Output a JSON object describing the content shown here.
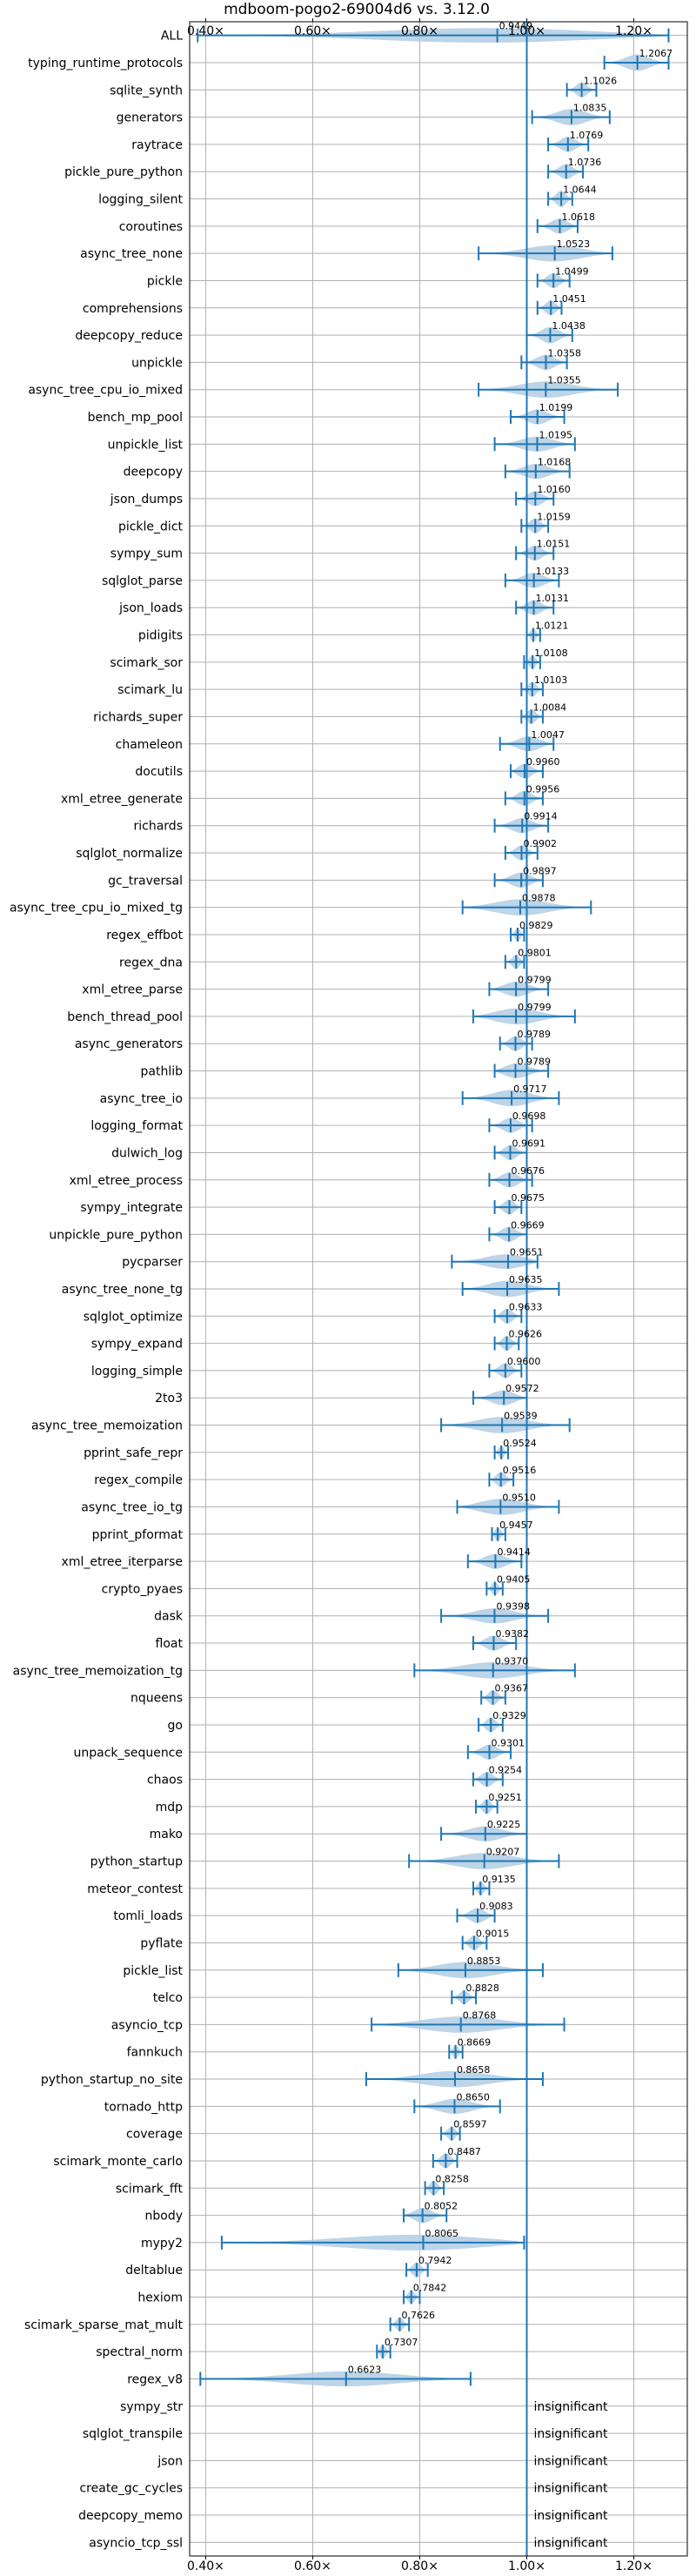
{
  "chart_data": {
    "type": "violin",
    "title": "mdboom-pogo2-69004d6 vs. 3.12.0",
    "x_ticks": [
      "0.40×",
      "0.60×",
      "0.80×",
      "1.00×",
      "1.20×"
    ],
    "x_tick_values": [
      0.4,
      0.6,
      0.8,
      1.0,
      1.2
    ],
    "xlim": [
      0.37,
      1.3
    ],
    "reference_line": 1.0,
    "grid": true,
    "colors": {
      "violin": "#b3cde3",
      "line": "#1f77b4",
      "grid": "#b0b0b0"
    },
    "insignificant_text": "insignificant",
    "benchmarks": [
      {
        "name": "ALL",
        "label": "0.9449",
        "value": 0.9449,
        "lo": 0.385,
        "hi": 1.265,
        "width": 0.55
      },
      {
        "name": "typing_runtime_protocols",
        "label": "1.2067",
        "value": 1.2067,
        "lo": 1.145,
        "hi": 1.265,
        "width": 0.6
      },
      {
        "name": "sqlite_synth",
        "label": "1.1026",
        "value": 1.1026,
        "lo": 1.075,
        "hi": 1.13,
        "width": 0.55
      },
      {
        "name": "generators",
        "label": "1.0835",
        "value": 1.0835,
        "lo": 1.01,
        "hi": 1.155,
        "width": 0.6
      },
      {
        "name": "raytrace",
        "label": "1.0769",
        "value": 1.0769,
        "lo": 1.04,
        "hi": 1.115,
        "width": 0.55
      },
      {
        "name": "pickle_pure_python",
        "label": "1.0736",
        "value": 1.0736,
        "lo": 1.04,
        "hi": 1.105,
        "width": 0.55
      },
      {
        "name": "logging_silent",
        "label": "1.0644",
        "value": 1.0644,
        "lo": 1.04,
        "hi": 1.085,
        "width": 0.6
      },
      {
        "name": "coroutines",
        "label": "1.0618",
        "value": 1.0618,
        "lo": 1.02,
        "hi": 1.095,
        "width": 0.55
      },
      {
        "name": "async_tree_none",
        "label": "1.0523",
        "value": 1.0523,
        "lo": 0.91,
        "hi": 1.16,
        "width": 0.6
      },
      {
        "name": "pickle",
        "label": "1.0499",
        "value": 1.0499,
        "lo": 1.02,
        "hi": 1.08,
        "width": 0.55
      },
      {
        "name": "comprehensions",
        "label": "1.0451",
        "value": 1.0451,
        "lo": 1.02,
        "hi": 1.065,
        "width": 0.55
      },
      {
        "name": "deepcopy_reduce",
        "label": "1.0438",
        "value": 1.0438,
        "lo": 1.0,
        "hi": 1.085,
        "width": 0.6
      },
      {
        "name": "unpickle",
        "label": "1.0358",
        "value": 1.0358,
        "lo": 0.99,
        "hi": 1.075,
        "width": 0.55
      },
      {
        "name": "async_tree_cpu_io_mixed",
        "label": "1.0355",
        "value": 1.0355,
        "lo": 0.91,
        "hi": 1.17,
        "width": 0.6
      },
      {
        "name": "bench_mp_pool",
        "label": "1.0199",
        "value": 1.0199,
        "lo": 0.97,
        "hi": 1.07,
        "width": 0.55
      },
      {
        "name": "unpickle_list",
        "label": "1.0195",
        "value": 1.0195,
        "lo": 0.94,
        "hi": 1.09,
        "width": 0.55
      },
      {
        "name": "deepcopy",
        "label": "1.0168",
        "value": 1.0168,
        "lo": 0.96,
        "hi": 1.08,
        "width": 0.55
      },
      {
        "name": "json_dumps",
        "label": "1.0160",
        "value": 1.016,
        "lo": 0.98,
        "hi": 1.05,
        "width": 0.55
      },
      {
        "name": "pickle_dict",
        "label": "1.0159",
        "value": 1.0159,
        "lo": 0.99,
        "hi": 1.04,
        "width": 0.55
      },
      {
        "name": "sympy_sum",
        "label": "1.0151",
        "value": 1.0151,
        "lo": 0.98,
        "hi": 1.05,
        "width": 0.55
      },
      {
        "name": "sqlglot_parse",
        "label": "1.0133",
        "value": 1.0133,
        "lo": 0.96,
        "hi": 1.06,
        "width": 0.55
      },
      {
        "name": "json_loads",
        "label": "1.0131",
        "value": 1.0131,
        "lo": 0.98,
        "hi": 1.05,
        "width": 0.55
      },
      {
        "name": "pidigits",
        "label": "1.0121",
        "value": 1.0121,
        "lo": 1.0,
        "hi": 1.025,
        "width": 0.5
      },
      {
        "name": "scimark_sor",
        "label": "1.0108",
        "value": 1.0108,
        "lo": 0.995,
        "hi": 1.025,
        "width": 0.5
      },
      {
        "name": "scimark_lu",
        "label": "1.0103",
        "value": 1.0103,
        "lo": 0.99,
        "hi": 1.03,
        "width": 0.55
      },
      {
        "name": "richards_super",
        "label": "1.0084",
        "value": 1.0084,
        "lo": 0.99,
        "hi": 1.03,
        "width": 0.55
      },
      {
        "name": "chameleon",
        "label": "1.0047",
        "value": 1.0047,
        "lo": 0.95,
        "hi": 1.05,
        "width": 0.55
      },
      {
        "name": "docutils",
        "label": "0.9960",
        "value": 0.996,
        "lo": 0.97,
        "hi": 1.03,
        "width": 0.55
      },
      {
        "name": "xml_etree_generate",
        "label": "0.9956",
        "value": 0.9956,
        "lo": 0.96,
        "hi": 1.03,
        "width": 0.55
      },
      {
        "name": "richards",
        "label": "0.9914",
        "value": 0.9914,
        "lo": 0.94,
        "hi": 1.04,
        "width": 0.55
      },
      {
        "name": "sqlglot_normalize",
        "label": "0.9902",
        "value": 0.9902,
        "lo": 0.96,
        "hi": 1.02,
        "width": 0.55
      },
      {
        "name": "gc_traversal",
        "label": "0.9897",
        "value": 0.9897,
        "lo": 0.94,
        "hi": 1.03,
        "width": 0.55
      },
      {
        "name": "async_tree_cpu_io_mixed_tg",
        "label": "0.9878",
        "value": 0.9878,
        "lo": 0.88,
        "hi": 1.12,
        "width": 0.6
      },
      {
        "name": "regex_effbot",
        "label": "0.9829",
        "value": 0.9829,
        "lo": 0.97,
        "hi": 0.995,
        "width": 0.5
      },
      {
        "name": "regex_dna",
        "label": "0.9801",
        "value": 0.9801,
        "lo": 0.96,
        "hi": 0.995,
        "width": 0.5
      },
      {
        "name": "xml_etree_parse",
        "label": "0.9799",
        "value": 0.9799,
        "lo": 0.93,
        "hi": 1.04,
        "width": 0.55
      },
      {
        "name": "bench_thread_pool",
        "label": "0.9799",
        "value": 0.9799,
        "lo": 0.9,
        "hi": 1.09,
        "width": 0.6
      },
      {
        "name": "async_generators",
        "label": "0.9789",
        "value": 0.9789,
        "lo": 0.95,
        "hi": 1.01,
        "width": 0.55
      },
      {
        "name": "pathlib",
        "label": "0.9789",
        "value": 0.9789,
        "lo": 0.94,
        "hi": 1.04,
        "width": 0.55
      },
      {
        "name": "async_tree_io",
        "label": "0.9717",
        "value": 0.9717,
        "lo": 0.88,
        "hi": 1.06,
        "width": 0.6
      },
      {
        "name": "logging_format",
        "label": "0.9698",
        "value": 0.9698,
        "lo": 0.93,
        "hi": 1.01,
        "width": 0.55
      },
      {
        "name": "dulwich_log",
        "label": "0.9691",
        "value": 0.9691,
        "lo": 0.94,
        "hi": 1.0,
        "width": 0.55
      },
      {
        "name": "xml_etree_process",
        "label": "0.9676",
        "value": 0.9676,
        "lo": 0.93,
        "hi": 1.01,
        "width": 0.55
      },
      {
        "name": "sympy_integrate",
        "label": "0.9675",
        "value": 0.9675,
        "lo": 0.94,
        "hi": 0.99,
        "width": 0.55
      },
      {
        "name": "unpickle_pure_python",
        "label": "0.9669",
        "value": 0.9669,
        "lo": 0.93,
        "hi": 1.0,
        "width": 0.55
      },
      {
        "name": "pycparser",
        "label": "0.9651",
        "value": 0.9651,
        "lo": 0.86,
        "hi": 1.02,
        "width": 0.55
      },
      {
        "name": "async_tree_none_tg",
        "label": "0.9635",
        "value": 0.9635,
        "lo": 0.88,
        "hi": 1.06,
        "width": 0.6
      },
      {
        "name": "sqlglot_optimize",
        "label": "0.9633",
        "value": 0.9633,
        "lo": 0.94,
        "hi": 0.99,
        "width": 0.55
      },
      {
        "name": "sympy_expand",
        "label": "0.9626",
        "value": 0.9626,
        "lo": 0.94,
        "hi": 0.985,
        "width": 0.55
      },
      {
        "name": "logging_simple",
        "label": "0.9600",
        "value": 0.96,
        "lo": 0.93,
        "hi": 0.99,
        "width": 0.55
      },
      {
        "name": "2to3",
        "label": "0.9572",
        "value": 0.9572,
        "lo": 0.9,
        "hi": 1.0,
        "width": 0.55
      },
      {
        "name": "async_tree_memoization",
        "label": "0.9539",
        "value": 0.9539,
        "lo": 0.84,
        "hi": 1.08,
        "width": 0.6
      },
      {
        "name": "pprint_safe_repr",
        "label": "0.9524",
        "value": 0.9524,
        "lo": 0.94,
        "hi": 0.965,
        "width": 0.5
      },
      {
        "name": "regex_compile",
        "label": "0.9516",
        "value": 0.9516,
        "lo": 0.93,
        "hi": 0.975,
        "width": 0.55
      },
      {
        "name": "async_tree_io_tg",
        "label": "0.9510",
        "value": 0.951,
        "lo": 0.87,
        "hi": 1.06,
        "width": 0.6
      },
      {
        "name": "pprint_pformat",
        "label": "0.9457",
        "value": 0.9457,
        "lo": 0.935,
        "hi": 0.96,
        "width": 0.5
      },
      {
        "name": "xml_etree_iterparse",
        "label": "0.9414",
        "value": 0.9414,
        "lo": 0.89,
        "hi": 0.99,
        "width": 0.55
      },
      {
        "name": "crypto_pyaes",
        "label": "0.9405",
        "value": 0.9405,
        "lo": 0.925,
        "hi": 0.955,
        "width": 0.5
      },
      {
        "name": "dask",
        "label": "0.9398",
        "value": 0.9398,
        "lo": 0.84,
        "hi": 1.04,
        "width": 0.55
      },
      {
        "name": "float",
        "label": "0.9382",
        "value": 0.9382,
        "lo": 0.9,
        "hi": 0.98,
        "width": 0.55
      },
      {
        "name": "async_tree_memoization_tg",
        "label": "0.9370",
        "value": 0.937,
        "lo": 0.79,
        "hi": 1.09,
        "width": 0.6
      },
      {
        "name": "nqueens",
        "label": "0.9367",
        "value": 0.9367,
        "lo": 0.915,
        "hi": 0.96,
        "width": 0.55
      },
      {
        "name": "go",
        "label": "0.9329",
        "value": 0.9329,
        "lo": 0.91,
        "hi": 0.955,
        "width": 0.55
      },
      {
        "name": "unpack_sequence",
        "label": "0.9301",
        "value": 0.9301,
        "lo": 0.89,
        "hi": 0.97,
        "width": 0.55
      },
      {
        "name": "chaos",
        "label": "0.9254",
        "value": 0.9254,
        "lo": 0.9,
        "hi": 0.955,
        "width": 0.55
      },
      {
        "name": "mdp",
        "label": "0.9251",
        "value": 0.9251,
        "lo": 0.905,
        "hi": 0.945,
        "width": 0.55
      },
      {
        "name": "mako",
        "label": "0.9225",
        "value": 0.9225,
        "lo": 0.84,
        "hi": 1.0,
        "width": 0.55
      },
      {
        "name": "python_startup",
        "label": "0.9207",
        "value": 0.9207,
        "lo": 0.78,
        "hi": 1.06,
        "width": 0.6
      },
      {
        "name": "meteor_contest",
        "label": "0.9135",
        "value": 0.9135,
        "lo": 0.9,
        "hi": 0.93,
        "width": 0.5
      },
      {
        "name": "tomli_loads",
        "label": "0.9083",
        "value": 0.9083,
        "lo": 0.87,
        "hi": 0.94,
        "width": 0.55
      },
      {
        "name": "pyflate",
        "label": "0.9015",
        "value": 0.9015,
        "lo": 0.88,
        "hi": 0.925,
        "width": 0.55
      },
      {
        "name": "pickle_list",
        "label": "0.8853",
        "value": 0.8853,
        "lo": 0.76,
        "hi": 1.03,
        "width": 0.6
      },
      {
        "name": "telco",
        "label": "0.8828",
        "value": 0.8828,
        "lo": 0.86,
        "hi": 0.905,
        "width": 0.5
      },
      {
        "name": "asyncio_tcp",
        "label": "0.8768",
        "value": 0.8768,
        "lo": 0.71,
        "hi": 1.07,
        "width": 0.6
      },
      {
        "name": "fannkuch",
        "label": "0.8669",
        "value": 0.8669,
        "lo": 0.855,
        "hi": 0.88,
        "width": 0.5
      },
      {
        "name": "python_startup_no_site",
        "label": "0.8658",
        "value": 0.8658,
        "lo": 0.7,
        "hi": 1.03,
        "width": 0.6
      },
      {
        "name": "tornado_http",
        "label": "0.8650",
        "value": 0.865,
        "lo": 0.79,
        "hi": 0.95,
        "width": 0.55
      },
      {
        "name": "coverage",
        "label": "0.8597",
        "value": 0.8597,
        "lo": 0.84,
        "hi": 0.875,
        "width": 0.5
      },
      {
        "name": "scimark_monte_carlo",
        "label": "0.8487",
        "value": 0.8487,
        "lo": 0.825,
        "hi": 0.87,
        "width": 0.55
      },
      {
        "name": "scimark_fft",
        "label": "0.8258",
        "value": 0.8258,
        "lo": 0.81,
        "hi": 0.845,
        "width": 0.55
      },
      {
        "name": "nbody",
        "label": "0.8052",
        "value": 0.8052,
        "lo": 0.77,
        "hi": 0.85,
        "width": 0.55
      },
      {
        "name": "mypy2",
        "label": "0.8065",
        "value": 0.8065,
        "lo": 0.43,
        "hi": 0.995,
        "width": 0.6
      },
      {
        "name": "deltablue",
        "label": "0.7942",
        "value": 0.7942,
        "lo": 0.775,
        "hi": 0.815,
        "width": 0.55
      },
      {
        "name": "hexiom",
        "label": "0.7842",
        "value": 0.7842,
        "lo": 0.77,
        "hi": 0.8,
        "width": 0.5
      },
      {
        "name": "scimark_sparse_mat_mult",
        "label": "0.7626",
        "value": 0.7626,
        "lo": 0.745,
        "hi": 0.78,
        "width": 0.5
      },
      {
        "name": "spectral_norm",
        "label": "0.7307",
        "value": 0.7307,
        "lo": 0.72,
        "hi": 0.745,
        "width": 0.5
      },
      {
        "name": "regex_v8",
        "label": "0.6623",
        "value": 0.6623,
        "lo": 0.39,
        "hi": 0.895,
        "width": 0.55
      },
      {
        "name": "sympy_str",
        "insignificant": true
      },
      {
        "name": "sqlglot_transpile",
        "insignificant": true
      },
      {
        "name": "json",
        "insignificant": true
      },
      {
        "name": "create_gc_cycles",
        "insignificant": true
      },
      {
        "name": "deepcopy_memo",
        "insignificant": true
      },
      {
        "name": "asyncio_tcp_ssl",
        "insignificant": true
      }
    ]
  }
}
